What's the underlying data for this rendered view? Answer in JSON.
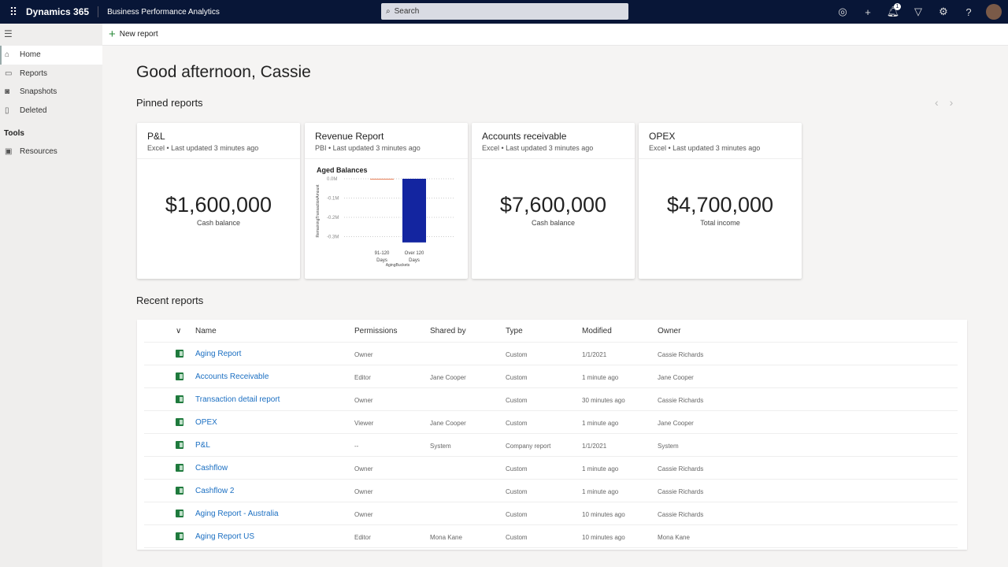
{
  "topbar": {
    "brand": "Dynamics 365",
    "app": "Business Performance Analytics",
    "search_placeholder": "Search",
    "notification_count": "1",
    "icons": [
      "copilot-icon",
      "plus-icon",
      "bell-icon",
      "filter-icon",
      "gear-icon",
      "help-icon"
    ]
  },
  "sidebar": {
    "items": [
      {
        "label": "Home",
        "icon": "home-icon",
        "active": true
      },
      {
        "label": "Reports",
        "icon": "reports-icon"
      },
      {
        "label": "Snapshots",
        "icon": "camera-icon"
      },
      {
        "label": "Deleted",
        "icon": "trash-icon"
      }
    ],
    "tools_heading": "Tools",
    "tools": [
      {
        "label": "Resources",
        "icon": "resources-icon"
      }
    ]
  },
  "command": {
    "new_report": "New report"
  },
  "greeting": "Good afternoon, Cassie",
  "pinned": {
    "heading": "Pinned reports",
    "cards": [
      {
        "title": "P&L",
        "subtitle": "Excel • Last updated 3 minutes ago",
        "value": "$1,600,000",
        "label": "Cash balance"
      },
      {
        "title": "Revenue Report",
        "subtitle": "PBI • Last updated 3 minutes ago"
      },
      {
        "title": "Accounts receivable",
        "subtitle": "Excel • Last updated 3 minutes ago",
        "value": "$7,600,000",
        "label": "Cash balance"
      },
      {
        "title": "OPEX",
        "subtitle": "Excel • Last updated 3 minutes ago",
        "value": "$4,700,000",
        "label": "Total income"
      }
    ]
  },
  "chart_data": {
    "type": "bar",
    "title": "Aged Balances",
    "xlabel": "AgingBuckets",
    "ylabel": "RemainingTransactionAmount",
    "categories": [
      "91-120 Days",
      "Over 120 Days"
    ],
    "values": [
      -0.002,
      -0.33
    ],
    "yticks": [
      "0.0M",
      "-0.1M",
      "-0.2M",
      "-0.3M"
    ],
    "ylim": [
      -0.35,
      0
    ],
    "colors": [
      "#e8825a",
      "#1325a0"
    ],
    "grid": true
  },
  "recent": {
    "heading": "Recent reports",
    "columns": [
      "Name",
      "Permissions",
      "Shared by",
      "Type",
      "Modified",
      "Owner"
    ],
    "rows": [
      [
        "Aging Report",
        "Owner",
        "",
        "Custom",
        "1/1/2021",
        "Cassie Richards"
      ],
      [
        "Accounts Receivable",
        "Editor",
        "Jane Cooper",
        "Custom",
        "1 minute ago",
        "Jane Cooper"
      ],
      [
        "Transaction detail report",
        "Owner",
        "",
        "Custom",
        "30 minutes ago",
        "Cassie Richards"
      ],
      [
        "OPEX",
        "Viewer",
        "Jane Cooper",
        "Custom",
        "1 minute ago",
        "Jane Cooper"
      ],
      [
        "P&L",
        "--",
        "System",
        "Company report",
        "1/1/2021",
        "System"
      ],
      [
        "Cashflow",
        "Owner",
        "",
        "Custom",
        "1 minute ago",
        "Cassie Richards"
      ],
      [
        "Cashflow 2",
        "Owner",
        "",
        "Custom",
        "1 minute ago",
        "Cassie Richards"
      ],
      [
        "Aging Report - Australia",
        "Owner",
        "",
        "Custom",
        "10 minutes ago",
        "Cassie Richards"
      ],
      [
        "Aging Report US",
        "Editor",
        "Mona Kane",
        "Custom",
        "10 minutes ago",
        "Mona Kane"
      ]
    ]
  }
}
